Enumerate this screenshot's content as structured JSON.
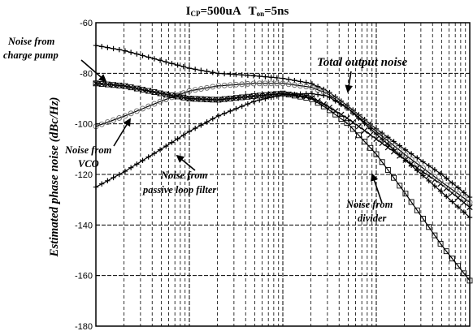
{
  "chart_data": {
    "type": "line",
    "title": {
      "i": "I",
      "i_sub": "CP",
      "i_val": "=500uA",
      "t": "T",
      "t_sub": "on",
      "t_val": "=5ns"
    },
    "ylabel": "Estimated phase noise (dBc/Hz)",
    "xlabel": "",
    "x_scale": "log",
    "xlim": [
      1000,
      10000000
    ],
    "ylim": [
      -180,
      -60
    ],
    "y_ticks": [
      -60,
      -80,
      -100,
      -120,
      -140,
      -160,
      -180
    ],
    "y_tick_labels": [
      "-60",
      "-80",
      "-100",
      "-120",
      "-140",
      "-160",
      "-180"
    ],
    "grid": true,
    "series": [
      {
        "name": "Total output noise",
        "marker": "+",
        "x": [
          1000,
          2000,
          5000,
          10000,
          20000,
          50000,
          100000,
          200000,
          300000,
          500000,
          1000000,
          2000000,
          5000000,
          10000000
        ],
        "y": [
          -69,
          -71,
          -75,
          -78,
          -80,
          -81,
          -82,
          -84,
          -87,
          -93,
          -102,
          -110,
          -120,
          -129
        ]
      },
      {
        "name": "Noise from charge pump",
        "marker": "x",
        "x": [
          1000,
          2000,
          5000,
          10000,
          20000,
          50000,
          100000,
          200000,
          300000,
          500000,
          1000000,
          2000000,
          5000000,
          10000000
        ],
        "y": [
          -84,
          -85,
          -88,
          -90,
          -90.5,
          -89,
          -88,
          -89.5,
          -93,
          -98,
          -106,
          -114,
          -124,
          -133
        ]
      },
      {
        "name": "Noise from VCO",
        "marker": "o",
        "x": [
          1000,
          2000,
          5000,
          10000,
          20000,
          50000,
          100000,
          200000,
          300000,
          500000,
          1000000,
          2000000,
          5000000,
          10000000
        ],
        "y": [
          -101,
          -97,
          -91,
          -87,
          -85,
          -84,
          -84,
          -85.5,
          -88,
          -94,
          -103,
          -112,
          -123,
          -131
        ]
      },
      {
        "name": "Noise from passive loop filter",
        "marker": "+",
        "x": [
          1000,
          2000,
          5000,
          10000,
          20000,
          50000,
          100000,
          200000,
          300000,
          500000,
          1000000,
          2000000,
          5000000,
          10000000
        ],
        "y": [
          -125,
          -119,
          -110,
          -103,
          -97,
          -91,
          -88.5,
          -88,
          -89,
          -94,
          -104,
          -114,
          -127,
          -137
        ]
      },
      {
        "name": "Noise from divider",
        "marker": "square",
        "x": [
          1000,
          2000,
          5000,
          10000,
          20000,
          50000,
          100000,
          200000,
          300000,
          500000,
          1000000,
          2000000,
          5000000,
          10000000
        ],
        "y": [
          -84,
          -85,
          -88,
          -90,
          -90.5,
          -89,
          -88,
          -90,
          -94,
          -100,
          -112,
          -127,
          -148,
          -162
        ]
      }
    ],
    "annotations": [
      {
        "text": "Noise from charge pump",
        "lines": [
          "Noise from",
          "charge pump"
        ]
      },
      {
        "text": "Total output noise",
        "lines": [
          "Total output noise"
        ]
      },
      {
        "text": "Noise from VCO",
        "lines": [
          "Noise from",
          "VCO"
        ]
      },
      {
        "text": "Noise from passive loop filter",
        "lines": [
          "Noise from",
          "passive loop filter"
        ]
      },
      {
        "text": "Noise from divider",
        "lines": [
          "Noise from",
          "divider"
        ]
      }
    ]
  }
}
